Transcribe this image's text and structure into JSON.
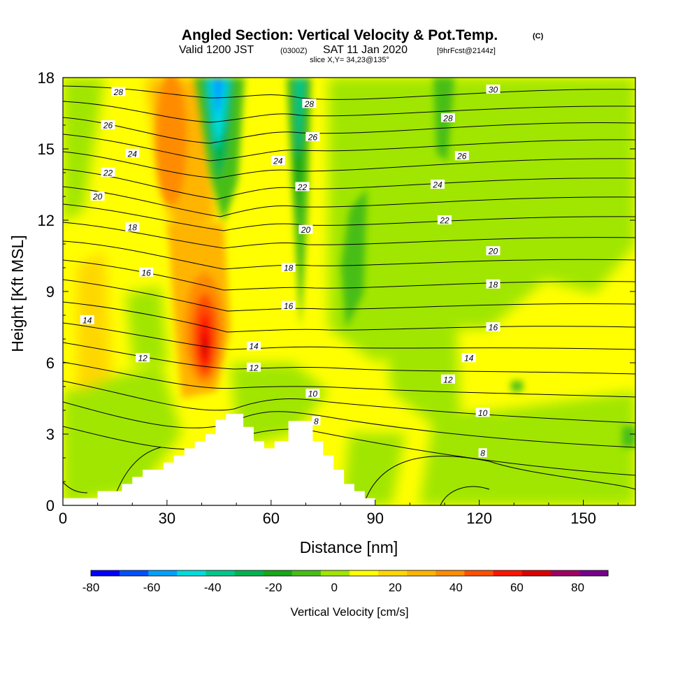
{
  "header": {
    "title": "Angled Section: Vertical Velocity & Pot.Temp.",
    "title_mark": "(C)",
    "valid_prefix": "Valid 1200 JST",
    "valid_utc": "(0300Z)",
    "valid_date": "SAT 11 Jan 2020",
    "valid_fcst": "[9hrFcst@2144z]",
    "slice": "slice X,Y= 34,23@135°"
  },
  "chart_data": {
    "type": "heatmap",
    "xlabel": "Distance [nm]",
    "ylabel": "Height [Kft MSL]",
    "xlim": [
      0,
      165
    ],
    "ylim": [
      0,
      18
    ],
    "x_ticks": [
      "0",
      "30",
      "60",
      "90",
      "120",
      "150"
    ],
    "y_ticks": [
      "0",
      "3",
      "6",
      "9",
      "12",
      "15",
      "18"
    ],
    "colorbar": {
      "label": "Vertical Velocity [cm/s]",
      "tick_labels": [
        "-80",
        "-60",
        "-40",
        "-20",
        "0",
        "20",
        "40",
        "60",
        "80"
      ],
      "levels": [
        -80,
        -70,
        -60,
        -50,
        -40,
        -30,
        -20,
        -10,
        0,
        10,
        20,
        30,
        40,
        50,
        60,
        70,
        80,
        90
      ],
      "colors": [
        "#0000ff",
        "#0050ff",
        "#00a0ff",
        "#00dcdc",
        "#00c88c",
        "#00b450",
        "#18a818",
        "#46be14",
        "#a0e600",
        "#ffff00",
        "#ffd700",
        "#ffb400",
        "#ff8c00",
        "#ff5000",
        "#ff1400",
        "#dc0000",
        "#a00064",
        "#78008c"
      ]
    },
    "terrain_nm_kft": [
      [
        0,
        0.3
      ],
      [
        10,
        0.3
      ],
      [
        10,
        0.6
      ],
      [
        17,
        0.6
      ],
      [
        17,
        0.9
      ],
      [
        20,
        0.9
      ],
      [
        20,
        1.2
      ],
      [
        23,
        1.2
      ],
      [
        23,
        1.5
      ],
      [
        29,
        1.5
      ],
      [
        29,
        1.8
      ],
      [
        32,
        1.8
      ],
      [
        32,
        2.1
      ],
      [
        35,
        2.1
      ],
      [
        35,
        2.4
      ],
      [
        38,
        2.4
      ],
      [
        38,
        2.7
      ],
      [
        41,
        2.7
      ],
      [
        41,
        3.0
      ],
      [
        44,
        3.0
      ],
      [
        44,
        3.6
      ],
      [
        47,
        3.6
      ],
      [
        47,
        3.85
      ],
      [
        52,
        3.85
      ],
      [
        52,
        3.3
      ],
      [
        55,
        3.3
      ],
      [
        55,
        2.7
      ],
      [
        58,
        2.7
      ],
      [
        58,
        2.4
      ],
      [
        61,
        2.4
      ],
      [
        61,
        2.7
      ],
      [
        65,
        2.7
      ],
      [
        65,
        3.55
      ],
      [
        72,
        3.55
      ],
      [
        72,
        2.7
      ],
      [
        75,
        2.7
      ],
      [
        75,
        2.1
      ],
      [
        78,
        2.1
      ],
      [
        78,
        1.5
      ],
      [
        81,
        1.5
      ],
      [
        81,
        0.9
      ],
      [
        84,
        0.9
      ],
      [
        84,
        0.6
      ],
      [
        87,
        0.6
      ],
      [
        87,
        0.3
      ],
      [
        90,
        0.3
      ]
    ],
    "velocity_features": [
      {
        "x": 42,
        "y": 7.0,
        "value": 60
      },
      {
        "x": 37,
        "y": 16.0,
        "value": 30
      },
      {
        "x": 46,
        "y": 16.0,
        "value": -40
      },
      {
        "x": 69,
        "y": 14.5,
        "value": -30
      },
      {
        "x": 7,
        "y": 7.5,
        "value": 20
      },
      {
        "x": 85,
        "y": 11.0,
        "value": -20
      },
      {
        "x": 110,
        "y": 17.0,
        "value": -20
      },
      {
        "x": 150,
        "y": 3.0,
        "value": -10
      }
    ],
    "theta_contour_labels": [
      {
        "text": "28",
        "x": 16,
        "y": 17.4
      },
      {
        "text": "26",
        "x": 13,
        "y": 16.0
      },
      {
        "text": "24",
        "x": 20,
        "y": 14.8
      },
      {
        "text": "22",
        "x": 13,
        "y": 14.0
      },
      {
        "text": "20",
        "x": 10,
        "y": 13.0
      },
      {
        "text": "18",
        "x": 20,
        "y": 11.7
      },
      {
        "text": "16",
        "x": 24,
        "y": 9.8
      },
      {
        "text": "14",
        "x": 7,
        "y": 7.8
      },
      {
        "text": "12",
        "x": 23,
        "y": 6.2
      },
      {
        "text": "14",
        "x": 55,
        "y": 6.7
      },
      {
        "text": "12",
        "x": 55,
        "y": 5.8
      },
      {
        "text": "24",
        "x": 62,
        "y": 14.5
      },
      {
        "text": "28",
        "x": 71,
        "y": 16.9
      },
      {
        "text": "26",
        "x": 72,
        "y": 15.5
      },
      {
        "text": "22",
        "x": 69,
        "y": 13.4
      },
      {
        "text": "20",
        "x": 70,
        "y": 11.6
      },
      {
        "text": "18",
        "x": 65,
        "y": 10.0
      },
      {
        "text": "16",
        "x": 65,
        "y": 8.4
      },
      {
        "text": "10",
        "x": 72,
        "y": 4.7
      },
      {
        "text": "8",
        "x": 73,
        "y": 3.55
      },
      {
        "text": "30",
        "x": 124,
        "y": 17.5
      },
      {
        "text": "28",
        "x": 111,
        "y": 16.3
      },
      {
        "text": "26",
        "x": 115,
        "y": 14.7
      },
      {
        "text": "24",
        "x": 108,
        "y": 13.5
      },
      {
        "text": "22",
        "x": 110,
        "y": 12.0
      },
      {
        "text": "20",
        "x": 124,
        "y": 10.7
      },
      {
        "text": "18",
        "x": 124,
        "y": 9.3
      },
      {
        "text": "16",
        "x": 124,
        "y": 7.5
      },
      {
        "text": "14",
        "x": 117,
        "y": 6.2
      },
      {
        "text": "12",
        "x": 111,
        "y": 5.3
      },
      {
        "text": "10",
        "x": 121,
        "y": 3.9
      },
      {
        "text": "8",
        "x": 121,
        "y": 2.2
      }
    ]
  }
}
